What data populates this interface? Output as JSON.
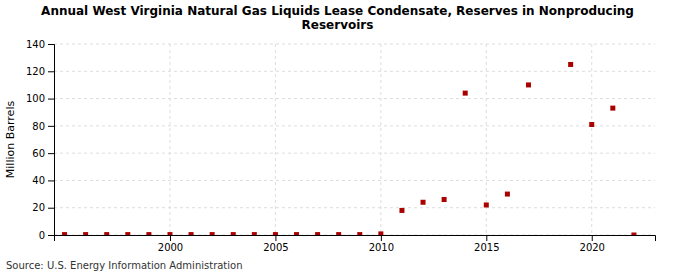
{
  "chart_data": {
    "type": "scatter",
    "title": "Annual West Virginia Natural Gas Liquids Lease Condensate, Reserves in Nonproducing\nReservoirs",
    "ylabel": "Million Barrels",
    "source": "Source: U.S. Energy Information Administration",
    "color": "#aa0000",
    "marker": "square",
    "grid": true,
    "xlim": [
      1994.5,
      2023
    ],
    "ylim": [
      0,
      140
    ],
    "xticks": [
      2000,
      2005,
      2010,
      2015,
      2020
    ],
    "yticks": [
      0,
      20,
      40,
      60,
      80,
      100,
      120,
      140
    ],
    "x": [
      1995,
      1996,
      1997,
      1998,
      1999,
      2000,
      2001,
      2002,
      2003,
      2004,
      2005,
      2006,
      2007,
      2008,
      2009,
      2010,
      2011,
      2012,
      2013,
      2014,
      2015,
      2016,
      2017,
      2019,
      2020,
      2021,
      2022
    ],
    "values": [
      0.3,
      0.3,
      0.3,
      0.3,
      0.3,
      0.3,
      0.3,
      0.3,
      0.3,
      0.3,
      0.3,
      0.3,
      0.3,
      0.3,
      0.3,
      0.8,
      18,
      24,
      26,
      104,
      22,
      30,
      110,
      125,
      81,
      93,
      0
    ]
  }
}
